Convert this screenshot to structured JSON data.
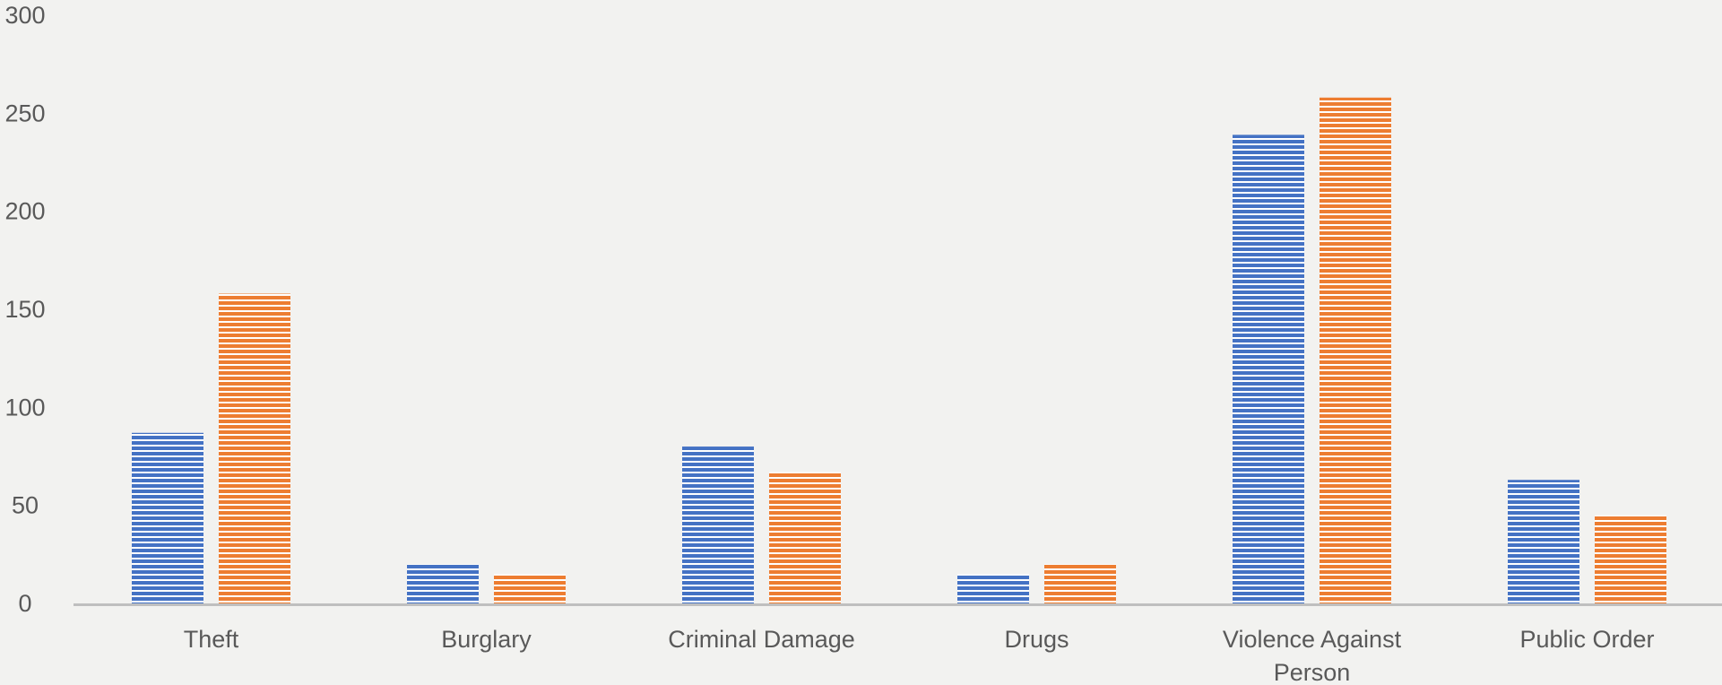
{
  "chart_data": {
    "type": "bar",
    "title": "",
    "xlabel": "",
    "ylabel": "",
    "categories": [
      "Theft",
      "Burglary",
      "Criminal Damage",
      "Drugs",
      "Violence Against Person",
      "Public Order"
    ],
    "series": [
      {
        "values": [
          87,
          20,
          80,
          15,
          239,
          63
        ],
        "color": "#4472c4"
      },
      {
        "values": [
          158,
          15,
          67,
          20,
          258,
          45
        ],
        "color": "#ed7d31"
      }
    ],
    "ylim": [
      0,
      300
    ],
    "yticks": [
      0,
      50,
      100,
      150,
      200,
      250,
      300
    ],
    "grid": false,
    "legend": "none",
    "fill_pattern": "horizontal-stripes",
    "colors": {
      "background": "#f2f2f0",
      "axis": "#bfbfbf",
      "text": "#595959"
    }
  }
}
